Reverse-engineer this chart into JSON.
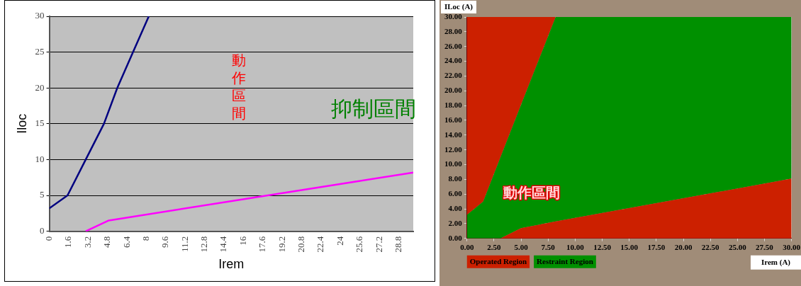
{
  "chart_data": [
    {
      "type": "line",
      "xlabel": "Irem",
      "ylabel": "Iloc",
      "xlim": [
        0,
        30
      ],
      "xticks": [
        0,
        1.6,
        3.2,
        4.8,
        6.4,
        8,
        9.6,
        11.2,
        12.8,
        14.4,
        16,
        17.6,
        19.2,
        20.8,
        22.4,
        24,
        25.6,
        27.2,
        28.8
      ],
      "ylim": [
        0,
        30
      ],
      "yticks": [
        0,
        5,
        10,
        15,
        20,
        25,
        30
      ],
      "grid": "y",
      "annotations": [
        "動作區間",
        "抑制區間"
      ],
      "series": [
        {
          "color": "#000080",
          "x": [
            0,
            1.5,
            3,
            4.5,
            5.6,
            6.9,
            8.2
          ],
          "values": [
            3.2,
            5,
            10,
            15,
            20,
            25,
            30
          ]
        },
        {
          "color": "#ff00ff",
          "x": [
            3,
            4.9,
            30
          ],
          "values": [
            0,
            1.5,
            8.2
          ]
        }
      ]
    },
    {
      "type": "area",
      "stacked": true,
      "xlabel": "Irem (A)",
      "ylabel": "ILoc (A)",
      "x": [
        0,
        1.5,
        3.1,
        5,
        8.2,
        30
      ],
      "xlim": [
        0,
        30
      ],
      "xticks": [
        {
          "value": 0,
          "label": "0.00"
        },
        {
          "value": 2.5,
          "label": "2.50"
        },
        {
          "value": 5,
          "label": "5.00"
        },
        {
          "value": 7.5,
          "label": "7.50"
        },
        {
          "value": 10,
          "label": "10.00"
        },
        {
          "value": 12.5,
          "label": "12.50"
        },
        {
          "value": 15,
          "label": "15.00"
        },
        {
          "value": 17.5,
          "label": "17.50"
        },
        {
          "value": 20,
          "label": "20.00"
        },
        {
          "value": 22.5,
          "label": "22.50"
        },
        {
          "value": 25,
          "label": "25.00"
        },
        {
          "value": 27.5,
          "label": "27.50"
        },
        {
          "value": 30,
          "label": "30.00"
        }
      ],
      "ylim": [
        0,
        30
      ],
      "yticks": [
        {
          "value": 0,
          "label": "0.00"
        },
        {
          "value": 2,
          "label": "2.00"
        },
        {
          "value": 4,
          "label": "4.00"
        },
        {
          "value": 6,
          "label": "6.00"
        },
        {
          "value": 8,
          "label": "8.00"
        },
        {
          "value": 10,
          "label": "10.00"
        },
        {
          "value": 12,
          "label": "12.00"
        },
        {
          "value": 14,
          "label": "14.00"
        },
        {
          "value": 16,
          "label": "16.00"
        },
        {
          "value": 18,
          "label": "18.00"
        },
        {
          "value": 20,
          "label": "20.00"
        },
        {
          "value": 22,
          "label": "22.00"
        },
        {
          "value": 24,
          "label": "24.00"
        },
        {
          "value": 26,
          "label": "26.00"
        },
        {
          "value": 28,
          "label": "28.00"
        },
        {
          "value": 30,
          "label": "30.00"
        }
      ],
      "grid": true,
      "legend": "bottom",
      "annotations": [
        "動作區間"
      ],
      "series": [
        {
          "name": "Operated Region",
          "color": "#cc2000",
          "values": [
            0,
            0,
            0,
            1.4,
            2.3,
            8.1
          ]
        },
        {
          "name": "Restraint Region",
          "color": "#009000",
          "values": [
            3.2,
            5,
            11,
            16.7,
            27.7,
            21.9
          ]
        },
        {
          "color": "#cc2000",
          "values": [
            26.8,
            25,
            19,
            11.9,
            0,
            0
          ]
        }
      ]
    }
  ]
}
